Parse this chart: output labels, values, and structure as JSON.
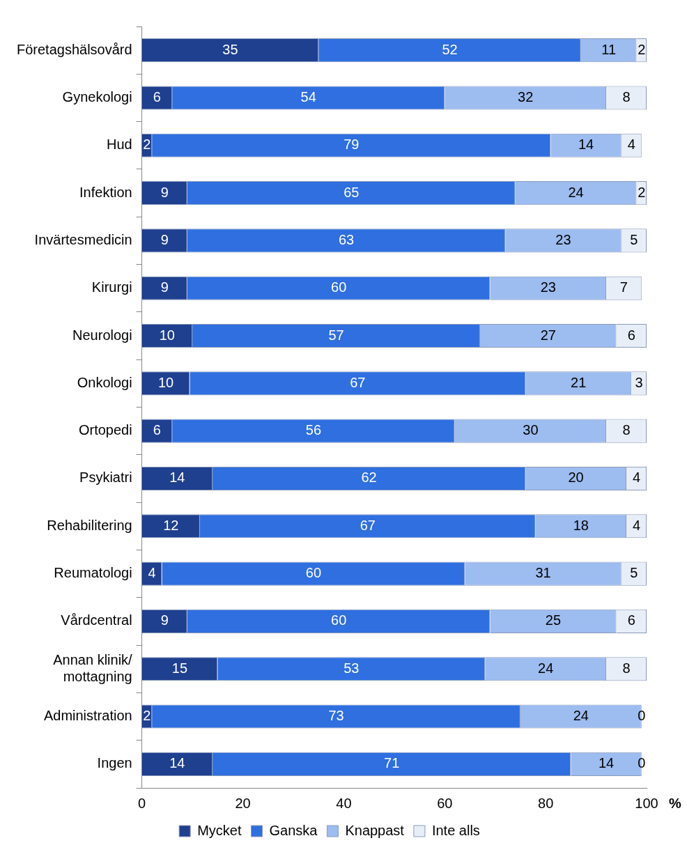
{
  "chart_data": {
    "type": "bar",
    "orientation": "horizontal",
    "stacked": true,
    "xlabel": "%",
    "categories": [
      "Företagshälsovård",
      "Gynekologi",
      "Hud",
      "Infektion",
      "Invärtesmedicin",
      "Kirurgi",
      "Neurologi",
      "Onkologi",
      "Ortopedi",
      "Psykiatri",
      "Rehabilitering",
      "Reumatologi",
      "Vårdcentral",
      "Annan klinik/\nmottagning",
      "Administration",
      "Ingen"
    ],
    "series": [
      {
        "name": "Mycket",
        "color": "#1f3f8f",
        "values": [
          35,
          6,
          2,
          9,
          9,
          9,
          10,
          9.5,
          6,
          14,
          11.5,
          4,
          9,
          15,
          2,
          14
        ],
        "value_labels": [
          "35",
          "6",
          "2",
          "9",
          "9",
          "9",
          "10",
          "10",
          "6",
          "14",
          "12",
          "4",
          "9",
          "15",
          "2",
          "14"
        ]
      },
      {
        "name": "Ganska",
        "color": "#2f6fe0",
        "values": [
          52,
          54,
          79,
          65,
          63,
          60,
          57,
          66.5,
          56,
          62,
          66.5,
          60,
          60,
          53,
          73,
          71
        ],
        "value_labels": [
          "52",
          "54",
          "79",
          "65",
          "63",
          "60",
          "57",
          "67",
          "56",
          "62",
          "67",
          "60",
          "60",
          "53",
          "73",
          "71"
        ]
      },
      {
        "name": "Knappast",
        "color": "#9dbcf0",
        "values": [
          11,
          32,
          14,
          24,
          23,
          23,
          27,
          21,
          30,
          20,
          18,
          31,
          25,
          24,
          24,
          14
        ],
        "value_labels": [
          "11",
          "32",
          "14",
          "24",
          "23",
          "23",
          "27",
          "21",
          "30",
          "20",
          "18",
          "31",
          "25",
          "24",
          "24",
          "14"
        ]
      },
      {
        "name": "Inte alls",
        "color": "#e8eef8",
        "values": [
          2,
          8,
          4,
          2,
          5,
          7,
          6,
          3,
          8,
          4,
          4,
          5,
          6,
          8,
          0,
          0
        ],
        "value_labels": [
          "2",
          "8",
          "4",
          "2",
          "5",
          "7",
          "6",
          "3",
          "8",
          "4",
          "4",
          "5",
          "6",
          "8",
          "0",
          "0"
        ]
      }
    ],
    "xlim": [
      0,
      100
    ],
    "xticks": [
      0,
      20,
      40,
      60,
      80,
      100
    ],
    "grid": false,
    "legend": "bottom"
  }
}
